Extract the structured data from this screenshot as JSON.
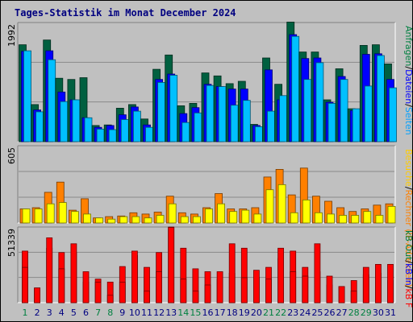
{
  "title": "Tages-Statistik im Monat December 2024",
  "colors": {
    "background": "#c0c0c0",
    "panel": "#c0c0c0",
    "grid": "#8a8a8a",
    "title": "#000080",
    "weekday_label": "#000080",
    "weekend_label": "#008040"
  },
  "chart_data": [
    {
      "type": "bar",
      "panel": "top",
      "ymax_label": "1992",
      "ylim": [
        0,
        1992
      ],
      "categories": [
        "1",
        "2",
        "3",
        "4",
        "5",
        "6",
        "7",
        "8",
        "9",
        "10",
        "11",
        "12",
        "13",
        "14",
        "15",
        "16",
        "17",
        "18",
        "19",
        "20",
        "21",
        "22",
        "23",
        "24",
        "25",
        "26",
        "27",
        "28",
        "29",
        "30",
        "31"
      ],
      "weekend_days": [
        "1",
        "7",
        "8",
        "14",
        "15",
        "21",
        "22",
        "28",
        "29"
      ],
      "series": [
        {
          "name": "Anfragen",
          "color": "#006040",
          "values": [
            1620,
            620,
            1700,
            1060,
            1040,
            1070,
            270,
            280,
            560,
            620,
            380,
            1210,
            1450,
            600,
            640,
            1150,
            1100,
            970,
            1010,
            290,
            1400,
            960,
            2000,
            1500,
            1500,
            700,
            1220,
            550,
            1610,
            1620,
            1300
          ]
        },
        {
          "name": "Dateien",
          "color": "#0000ff",
          "values": [
            1510,
            530,
            1520,
            830,
            700,
            400,
            240,
            270,
            450,
            580,
            280,
            1040,
            1130,
            470,
            570,
            960,
            920,
            880,
            880,
            270,
            1200,
            700,
            1790,
            1390,
            1400,
            660,
            1090,
            520,
            1460,
            1470,
            1040
          ]
        },
        {
          "name": "Seiten",
          "color": "#00c0ff",
          "values": [
            1520,
            500,
            1370,
            670,
            700,
            400,
            210,
            200,
            370,
            510,
            240,
            990,
            1110,
            320,
            480,
            940,
            920,
            610,
            690,
            250,
            510,
            770,
            1760,
            1040,
            1320,
            640,
            1040,
            550,
            930,
            1440,
            900
          ]
        }
      ]
    },
    {
      "type": "bar",
      "panel": "middle",
      "ymax_label": "605",
      "ylim": [
        0,
        605
      ],
      "categories": [
        "1",
        "2",
        "3",
        "4",
        "5",
        "6",
        "7",
        "8",
        "9",
        "10",
        "11",
        "12",
        "13",
        "14",
        "15",
        "16",
        "17",
        "18",
        "19",
        "20",
        "21",
        "22",
        "23",
        "24",
        "25",
        "26",
        "27",
        "28",
        "29",
        "30",
        "31"
      ],
      "series": [
        {
          "name": "Rechner (IP-Adressen)",
          "color": "#ff8000",
          "values": [
            110,
            120,
            240,
            320,
            100,
            190,
            40,
            50,
            55,
            80,
            70,
            85,
            210,
            80,
            70,
            120,
            230,
            110,
            110,
            120,
            360,
            420,
            220,
            430,
            210,
            170,
            120,
            90,
            110,
            140,
            150
          ]
        },
        {
          "name": "Besuche",
          "color": "#ffff00",
          "values": [
            110,
            110,
            150,
            160,
            90,
            70,
            40,
            30,
            50,
            50,
            40,
            60,
            150,
            50,
            50,
            110,
            150,
            90,
            100,
            70,
            260,
            300,
            80,
            180,
            80,
            70,
            60,
            60,
            90,
            60,
            130
          ]
        }
      ]
    },
    {
      "type": "bar",
      "panel": "bottom",
      "ymax_label": "51339",
      "ylim": [
        0,
        51339
      ],
      "categories": [
        "1",
        "2",
        "3",
        "4",
        "5",
        "6",
        "7",
        "8",
        "9",
        "10",
        "11",
        "12",
        "13",
        "14",
        "15",
        "16",
        "17",
        "18",
        "19",
        "20",
        "21",
        "22",
        "23",
        "24",
        "25",
        "26",
        "27",
        "28",
        "29",
        "30",
        "31"
      ],
      "series": [
        {
          "name": "kB F",
          "color": "#ff0000",
          "values": [
            35000,
            10000,
            37000,
            34000,
            34000,
            14000,
            16000,
            14000,
            24500,
            32000,
            24000,
            34000,
            51339,
            37000,
            23000,
            21000,
            16000,
            20000,
            37000,
            17000,
            24000,
            30000,
            35000,
            24000,
            21000,
            12000,
            11000,
            15000,
            19000,
            20000,
            15000
          ]
        },
        {
          "name": "kB In",
          "color": "#ff0000",
          "values": [
            24000,
            10000,
            44000,
            23000,
            40000,
            21000,
            14000,
            5000,
            14000,
            35000,
            8000,
            21000,
            51000,
            16000,
            8000,
            12000,
            21000,
            40000,
            17000,
            22000,
            16000,
            37000,
            21000,
            18000,
            40000,
            18000,
            11000,
            8000,
            24000,
            26000,
            26000
          ]
        },
        {
          "name": "kB Out",
          "color": "#808080",
          "values": [
            0,
            0,
            0,
            0,
            0,
            0,
            0,
            0,
            0,
            0,
            0,
            0,
            0,
            0,
            0,
            0,
            0,
            0,
            0,
            0,
            0,
            0,
            0,
            0,
            0,
            0,
            0,
            0,
            0,
            0,
            0
          ]
        }
      ]
    }
  ],
  "legend": {
    "top": [
      {
        "text": "Anfragen",
        "color": "#008040"
      },
      {
        "text": "/",
        "color": "#000000"
      },
      {
        "text": "Dateien",
        "color": "#0000ff"
      },
      {
        "text": "/",
        "color": "#000000"
      },
      {
        "text": "Seiten",
        "color": "#00a0ff"
      }
    ],
    "middle": [
      {
        "text": "Besuche",
        "color": "#ffcc00"
      },
      {
        "text": "/",
        "color": "#000000"
      },
      {
        "text": "Rechner (IP-Adressen)",
        "color": "#ff8000"
      }
    ],
    "bottom": [
      {
        "text": "kB Out",
        "color": "#008040"
      },
      {
        "text": "/",
        "color": "#000000"
      },
      {
        "text": "kB In",
        "color": "#0000ff"
      },
      {
        "text": "/",
        "color": "#000000"
      },
      {
        "text": "kB F",
        "color": "#ff0000"
      }
    ]
  }
}
